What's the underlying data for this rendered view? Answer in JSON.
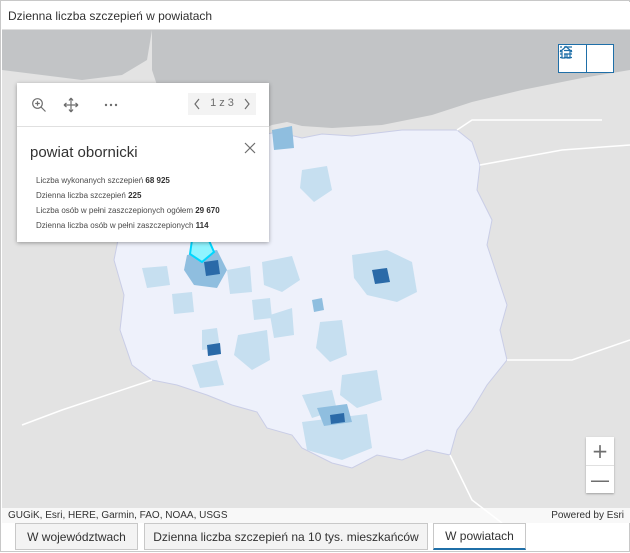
{
  "title": "Dzienna liczba szczepień w powiatach",
  "map": {
    "attribution": "GUGiK, Esri, HERE, Garmin, FAO, NOAA, USGS",
    "powered_by": "Powered by Esri",
    "buttons": [
      "home-icon",
      "legend-list-icon"
    ],
    "zoom_in": "+",
    "zoom_out": "—",
    "colors": {
      "sea": "#c2c4c6",
      "land": "#e3e3e3",
      "poland": "#eef1fb",
      "light": "#c6dff0",
      "medium": "#8fbedf",
      "dark": "#2a6aa8",
      "highlight": "#8ff4ff"
    }
  },
  "popup": {
    "pager": "1 z 3",
    "tools": [
      "zoom-to-icon",
      "pan-icon",
      "more-options-icon"
    ],
    "feature_title": "powiat obornicki",
    "fields": [
      {
        "label": "Liczba wykonanych szczepień",
        "value": "68 925"
      },
      {
        "label": "Dzienna liczba szczepień",
        "value": "225"
      },
      {
        "label": "Liczba osób w pełni zaszczepionych ogółem",
        "value": "29 670"
      },
      {
        "label": "Dzienna liczba osób w pełni zaszczepionych",
        "value": "114"
      }
    ]
  },
  "tabs": [
    {
      "label": "W województwach",
      "active": false
    },
    {
      "label": "Dzienna liczba szczepień na 10 tys. mieszkańców",
      "active": false
    },
    {
      "label": "W powiatach",
      "active": true
    }
  ]
}
